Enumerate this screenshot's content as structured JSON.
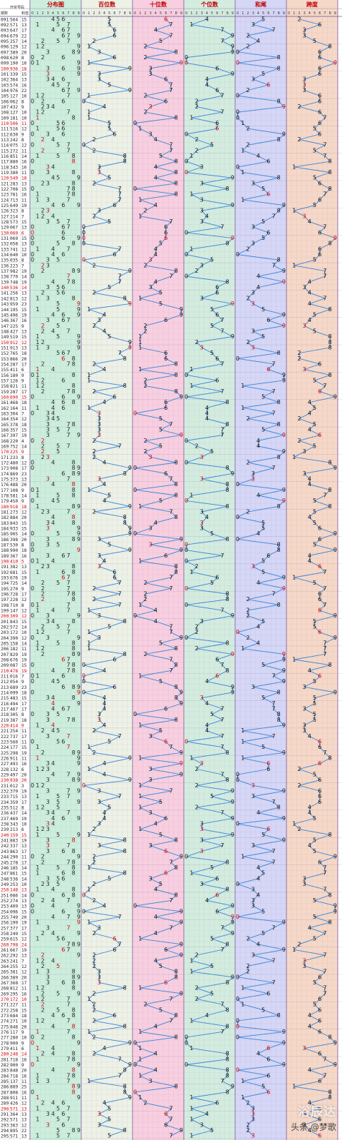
{
  "header": {
    "period_label": "期数",
    "winning_label": "开奖号码",
    "sum_label": "和值",
    "sections": [
      {
        "key": "dist",
        "title": "分布图",
        "color": "#cdeedd"
      },
      {
        "key": "hundreds",
        "title": "百位数",
        "color": "#eef1e6"
      },
      {
        "key": "tens",
        "title": "十位数",
        "color": "#f8cfe0"
      },
      {
        "key": "units",
        "title": "个位数",
        "color": "#d4ecdf"
      },
      {
        "key": "sumtail",
        "title": "和尾",
        "color": "#d6d6f6"
      },
      {
        "key": "span",
        "title": "跨度",
        "color": "#f6d8c8"
      }
    ],
    "digits": [
      "0",
      "1",
      "2",
      "3",
      "4",
      "5",
      "6",
      "7",
      "8",
      "9"
    ]
  },
  "watermark": {
    "brand": "浴辰达",
    "credit": "头条 @梦歌"
  },
  "chart_data": {
    "type": "table",
    "title": "",
    "periods_first": 91,
    "periods_last": 295,
    "draws": [
      [
        "091",
        "564",
        "15"
      ],
      [
        "092",
        "571",
        "13"
      ],
      [
        "093",
        "647",
        "17"
      ],
      [
        "094",
        "679",
        "22"
      ],
      [
        "095",
        "257",
        "14"
      ],
      [
        "096",
        "129",
        "12"
      ],
      [
        "097",
        "389",
        "20"
      ],
      [
        "098",
        "620",
        "8"
      ],
      [
        "099",
        "190",
        "10"
      ],
      [
        "100",
        "936",
        "18"
      ],
      [
        "101",
        "339",
        "15"
      ],
      [
        "102",
        "364",
        "13"
      ],
      [
        "103",
        "574",
        "16"
      ],
      [
        "104",
        "976",
        "22"
      ],
      [
        "105",
        "127",
        "10"
      ],
      [
        "106",
        "062",
        "8"
      ],
      [
        "107",
        "432",
        "9"
      ],
      [
        "108",
        "127",
        "10"
      ],
      [
        "109",
        "181",
        "10"
      ],
      [
        "110",
        "506",
        "11"
      ],
      [
        "111",
        "516",
        "12"
      ],
      [
        "112",
        "630",
        "9"
      ],
      [
        "113",
        "242",
        "8"
      ],
      [
        "114",
        "075",
        "12"
      ],
      [
        "115",
        "272",
        "11"
      ],
      [
        "116",
        "851",
        "14"
      ],
      [
        "117",
        "880",
        "16"
      ],
      [
        "118",
        "343",
        "10"
      ],
      [
        "119",
        "380",
        "11"
      ],
      [
        "120",
        "549",
        "18"
      ],
      [
        "121",
        "283",
        "13"
      ],
      [
        "122",
        "708",
        "15"
      ],
      [
        "123",
        "781",
        "16"
      ],
      [
        "124",
        "713",
        "11"
      ],
      [
        "125",
        "649",
        "19"
      ],
      [
        "126",
        "323",
        "8"
      ],
      [
        "127",
        "214",
        "7"
      ],
      [
        "128",
        "573",
        "15"
      ],
      [
        "129",
        "067",
        "13"
      ],
      [
        "130",
        "060",
        "6"
      ],
      [
        "131",
        "069",
        "15"
      ],
      [
        "132",
        "058",
        "13"
      ],
      [
        "133",
        "741",
        "12"
      ],
      [
        "134",
        "640",
        "10"
      ],
      [
        "135",
        "035",
        "8"
      ],
      [
        "136",
        "223",
        "7"
      ],
      [
        "137",
        "982",
        "19"
      ],
      [
        "138",
        "770",
        "14"
      ],
      [
        "139",
        "748",
        "19"
      ],
      [
        "140",
        "536",
        "14"
      ],
      [
        "141",
        "256",
        "13"
      ],
      [
        "142",
        "813",
        "12"
      ],
      [
        "143",
        "959",
        "23"
      ],
      [
        "144",
        "195",
        "15"
      ],
      [
        "145",
        "496",
        "19"
      ],
      [
        "146",
        "367",
        "16"
      ],
      [
        "147",
        "225",
        "9"
      ],
      [
        "148",
        "427",
        "13"
      ],
      [
        "149",
        "519",
        "15"
      ],
      [
        "150",
        "912",
        "12"
      ],
      [
        "151",
        "913",
        "13"
      ],
      [
        "152",
        "765",
        "18"
      ],
      [
        "153",
        "866",
        "20"
      ],
      [
        "154",
        "287",
        "17"
      ],
      [
        "155",
        "411",
        "6"
      ],
      [
        "156",
        "180",
        "9"
      ],
      [
        "157",
        "126",
        "9"
      ],
      [
        "158",
        "821",
        "11"
      ],
      [
        "159",
        "287",
        "17"
      ],
      [
        "160",
        "690",
        "15"
      ],
      [
        "161",
        "468",
        "18"
      ],
      [
        "162",
        "164",
        "11"
      ],
      [
        "163",
        "304",
        "7"
      ],
      [
        "164",
        "354",
        "12"
      ],
      [
        "165",
        "378",
        "18"
      ],
      [
        "166",
        "357",
        "15"
      ],
      [
        "167",
        "397",
        "19"
      ],
      [
        "168",
        "220",
        "4"
      ],
      [
        "169",
        "752",
        "14"
      ],
      [
        "170",
        "225",
        "9"
      ],
      [
        "171",
        "233",
        "8"
      ],
      [
        "172",
        "480",
        "12"
      ],
      [
        "173",
        "908",
        "17"
      ],
      [
        "174",
        "869",
        "23"
      ],
      [
        "175",
        "373",
        "13"
      ],
      [
        "176",
        "488",
        "20"
      ],
      [
        "177",
        "108",
        "9"
      ],
      [
        "178",
        "581",
        "14"
      ],
      [
        "179",
        "450",
        "9"
      ],
      [
        "180",
        "918",
        "18"
      ],
      [
        "181",
        "273",
        "12"
      ],
      [
        "182",
        "884",
        "20"
      ],
      [
        "183",
        "843",
        "15"
      ],
      [
        "184",
        "933",
        "15"
      ],
      [
        "185",
        "905",
        "14"
      ],
      [
        "186",
        "398",
        "20"
      ],
      [
        "187",
        "530",
        "8"
      ],
      [
        "188",
        "990",
        "18"
      ],
      [
        "189",
        "367",
        "16"
      ],
      [
        "190",
        "410",
        "5"
      ],
      [
        "191",
        "382",
        "13"
      ],
      [
        "192",
        "681",
        "15"
      ],
      [
        "193",
        "676",
        "19"
      ],
      [
        "194",
        "725",
        "14"
      ],
      [
        "195",
        "270",
        "9"
      ],
      [
        "196",
        "728",
        "17"
      ],
      [
        "197",
        "228",
        "12"
      ],
      [
        "198",
        "710",
        "8"
      ],
      [
        "199",
        "147",
        "12"
      ],
      [
        "200",
        "309",
        "12"
      ],
      [
        "201",
        "843",
        "15"
      ],
      [
        "202",
        "572",
        "14"
      ],
      [
        "203",
        "172",
        "10"
      ],
      [
        "204",
        "390",
        "12"
      ],
      [
        "205",
        "158",
        "14"
      ],
      [
        "206",
        "182",
        "11"
      ],
      [
        "207",
        "829",
        "19"
      ],
      [
        "208",
        "676",
        "19"
      ],
      [
        "209",
        "087",
        "15"
      ],
      [
        "210",
        "478",
        "19"
      ],
      [
        "211",
        "016",
        "7"
      ],
      [
        "212",
        "054",
        "9"
      ],
      [
        "213",
        "689",
        "23"
      ],
      [
        "214",
        "099",
        "18"
      ],
      [
        "215",
        "483",
        "15"
      ],
      [
        "216",
        "494",
        "17"
      ],
      [
        "217",
        "467",
        "17"
      ],
      [
        "218",
        "305",
        "8"
      ],
      [
        "219",
        "387",
        "18"
      ],
      [
        "220",
        "414",
        "9"
      ],
      [
        "221",
        "254",
        "11"
      ],
      [
        "222",
        "737",
        "17"
      ],
      [
        "223",
        "560",
        "11"
      ],
      [
        "224",
        "177",
        "15"
      ],
      [
        "225",
        "298",
        "19"
      ],
      [
        "226",
        "911",
        "11"
      ],
      [
        "227",
        "493",
        "16"
      ],
      [
        "228",
        "132",
        "6"
      ],
      [
        "229",
        "497",
        "20"
      ],
      [
        "230",
        "938",
        "20"
      ],
      [
        "231",
        "012",
        "3"
      ],
      [
        "232",
        "379",
        "19"
      ],
      [
        "233",
        "715",
        "13"
      ],
      [
        "234",
        "359",
        "17"
      ],
      [
        "235",
        "512",
        "8"
      ],
      [
        "236",
        "437",
        "14"
      ],
      [
        "237",
        "469",
        "19"
      ],
      [
        "238",
        "343",
        "10"
      ],
      [
        "239",
        "213",
        "6"
      ],
      [
        "240",
        "159",
        "15"
      ],
      [
        "241",
        "883",
        "19"
      ],
      [
        "242",
        "337",
        "13"
      ],
      [
        "243",
        "863",
        "17"
      ],
      [
        "244",
        "290",
        "11"
      ],
      [
        "245",
        "278",
        "17"
      ],
      [
        "246",
        "185",
        "14"
      ],
      [
        "247",
        "861",
        "15"
      ],
      [
        "248",
        "536",
        "14"
      ],
      [
        "249",
        "253",
        "10"
      ],
      [
        "250",
        "148",
        "13"
      ],
      [
        "251",
        "086",
        "14"
      ],
      [
        "252",
        "274",
        "13"
      ],
      [
        "253",
        "409",
        "13"
      ],
      [
        "254",
        "096",
        "15"
      ],
      [
        "255",
        "749",
        "20"
      ],
      [
        "256",
        "199",
        "19"
      ],
      [
        "257",
        "377",
        "17"
      ],
      [
        "258",
        "249",
        "15"
      ],
      [
        "259",
        "615",
        "12"
      ],
      [
        "260",
        "798",
        "24"
      ],
      [
        "261",
        "667",
        "19"
      ],
      [
        "262",
        "292",
        "13"
      ],
      [
        "263",
        "241",
        "7"
      ],
      [
        "264",
        "255",
        "12"
      ],
      [
        "265",
        "381",
        "12"
      ],
      [
        "266",
        "389",
        "20"
      ],
      [
        "267",
        "368",
        "17"
      ],
      [
        "268",
        "812",
        "11"
      ],
      [
        "269",
        "295",
        "16"
      ],
      [
        "270",
        "172",
        "10"
      ],
      [
        "271",
        "227",
        "11"
      ],
      [
        "272",
        "258",
        "15"
      ],
      [
        "273",
        "684",
        "18"
      ],
      [
        "274",
        "271",
        "10"
      ],
      [
        "275",
        "848",
        "20"
      ],
      [
        "276",
        "117",
        "9"
      ],
      [
        "277",
        "280",
        "10"
      ],
      [
        "278",
        "900",
        "9"
      ],
      [
        "279",
        "411",
        "6"
      ],
      [
        "280",
        "248",
        "14"
      ],
      [
        "281",
        "718",
        "16"
      ],
      [
        "282",
        "900",
        "9"
      ],
      [
        "283",
        "848",
        "20"
      ],
      [
        "284",
        "718",
        "16"
      ],
      [
        "285",
        "137",
        "11"
      ],
      [
        "286",
        "889",
        "25"
      ],
      [
        "287",
        "808",
        "16"
      ],
      [
        "288",
        "911",
        "11"
      ],
      [
        "289",
        "426",
        "12"
      ],
      [
        "290",
        "571",
        "13"
      ],
      [
        "291",
        "364",
        "13"
      ],
      [
        "292",
        "571",
        "13"
      ],
      [
        "293",
        "363",
        "12"
      ],
      [
        "294",
        "895",
        "22"
      ],
      [
        "295",
        "571",
        "13"
      ]
    ]
  }
}
